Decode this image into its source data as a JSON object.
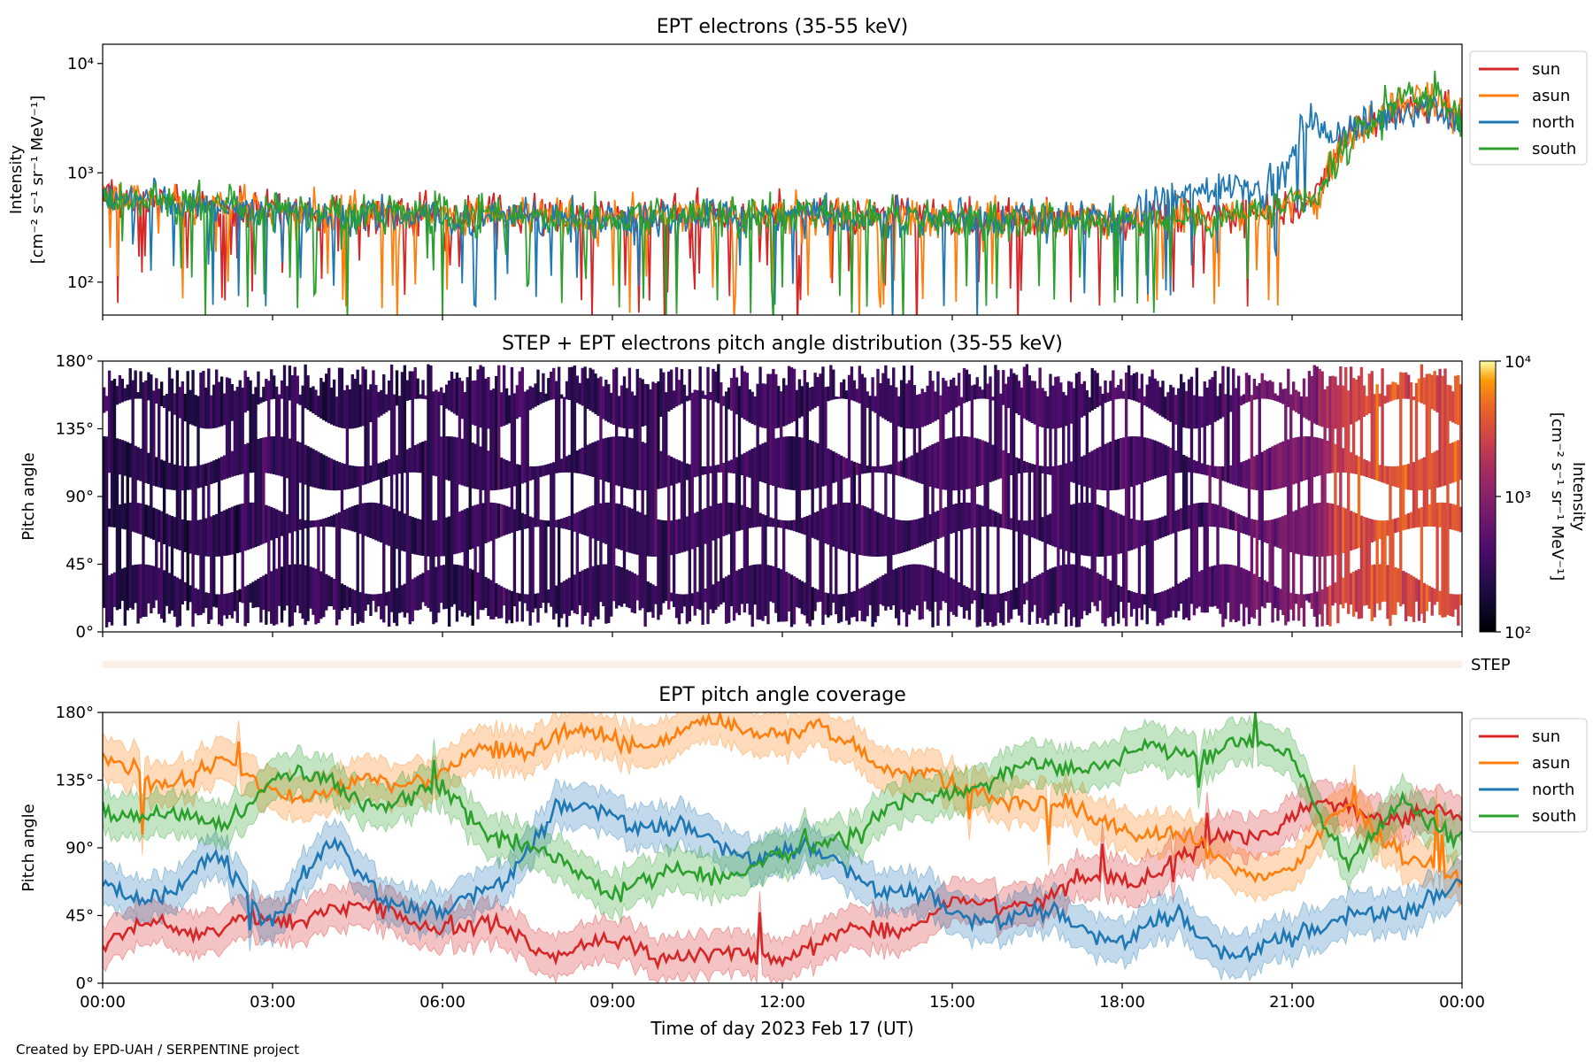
{
  "figure": {
    "footer": "Created by EPD-UAH / SERPENTINE project",
    "xlabel": "Time of day 2023 Feb 17 (UT)",
    "x_ticks": [
      "00:00",
      "03:00",
      "06:00",
      "09:00",
      "12:00",
      "15:00",
      "18:00",
      "21:00",
      "00:00"
    ],
    "step_label": "STEP"
  },
  "chart_data": [
    {
      "type": "line",
      "title": "EPT electrons (35-55 keV)",
      "ylabel_line1": "Intensity",
      "ylabel_line2": "[cm⁻² s⁻¹ sr⁻¹ MeV⁻¹]",
      "yscale": "log",
      "ylim": [
        50,
        15000
      ],
      "y_ticks": [
        "10²",
        "10³",
        "10⁴"
      ],
      "y_tick_values": [
        100,
        1000,
        10000
      ],
      "xlim": [
        "00:00",
        "24:00"
      ],
      "legend_position": "outside-right",
      "series": [
        {
          "name": "sun",
          "color": "#d62728",
          "hours": [
            0,
            2,
            4,
            6,
            8,
            10,
            12,
            14,
            16,
            18,
            19.5,
            20.5,
            21.5,
            22,
            22.5,
            23,
            23.5,
            23.9
          ],
          "values": [
            600,
            480,
            430,
            420,
            400,
            420,
            420,
            400,
            380,
            380,
            400,
            450,
            600,
            2300,
            3200,
            4000,
            4300,
            3200
          ]
        },
        {
          "name": "asun",
          "color": "#ff7f0e",
          "hours": [
            0,
            2,
            4,
            6,
            8,
            10,
            12,
            14,
            16,
            18,
            19.5,
            20.5,
            21.5,
            22,
            22.5,
            23,
            23.5,
            23.9
          ],
          "values": [
            620,
            500,
            440,
            420,
            400,
            410,
            410,
            400,
            380,
            370,
            400,
            450,
            600,
            2000,
            3000,
            4200,
            4600,
            3400
          ]
        },
        {
          "name": "north",
          "color": "#1f77b4",
          "hours": [
            0,
            2,
            4,
            6,
            8,
            10,
            12,
            14,
            16,
            18,
            19.5,
            20,
            20.5,
            21,
            21.3,
            21.5,
            22,
            22.5,
            23,
            23.5,
            23.9
          ],
          "values": [
            600,
            460,
            410,
            400,
            390,
            400,
            400,
            390,
            380,
            380,
            700,
            850,
            650,
            1200,
            3500,
            2200,
            2500,
            3000,
            3800,
            4200,
            3000
          ]
        },
        {
          "name": "south",
          "color": "#2ca02c",
          "hours": [
            0,
            2,
            4,
            6,
            8,
            10,
            12,
            14,
            16,
            18,
            19.5,
            20.5,
            21.5,
            22,
            22.5,
            23,
            23.5,
            23.9
          ],
          "values": [
            650,
            500,
            450,
            420,
            390,
            400,
            400,
            390,
            380,
            370,
            390,
            440,
            580,
            1800,
            3100,
            5500,
            4800,
            3300
          ]
        }
      ]
    },
    {
      "type": "heatmap",
      "title": "STEP + EPT electrons pitch angle distribution (35-55 keV)",
      "ylabel": "Pitch angle",
      "y_ticks": [
        "0°",
        "45°",
        "90°",
        "135°",
        "180°"
      ],
      "y_tick_values": [
        0,
        45,
        90,
        135,
        180
      ],
      "colormap": "inferno",
      "colorbar": {
        "label_line1": "Intensity",
        "label_line2": "[cm⁻² s⁻¹ sr⁻¹ MeV⁻¹]",
        "scale": "log",
        "range": [
          100,
          10000
        ],
        "ticks": [
          "10²",
          "10³",
          "10⁴"
        ],
        "tick_values": [
          100,
          1000,
          10000
        ]
      },
      "intensity_profile": {
        "hours": [
          0,
          19.5,
          21.4,
          21.8,
          22.5,
          23.9
        ],
        "values": [
          250,
          350,
          900,
          2800,
          3500,
          3000
        ]
      }
    },
    {
      "type": "line",
      "title": "EPT pitch angle coverage",
      "ylabel": "Pitch angle",
      "y_ticks": [
        "0°",
        "45°",
        "90°",
        "135°",
        "180°"
      ],
      "y_tick_values": [
        0,
        45,
        90,
        135,
        180
      ],
      "ylim": [
        0,
        180
      ],
      "legend_position": "outside-right",
      "series": [
        {
          "name": "sun",
          "color": "#d62728",
          "hours": [
            0,
            1,
            2,
            3,
            4,
            5,
            6,
            7,
            8,
            9,
            10,
            11,
            12,
            13,
            14,
            15,
            16,
            17,
            18,
            19,
            20,
            21,
            22,
            23,
            23.9
          ],
          "values": [
            25,
            40,
            35,
            40,
            50,
            45,
            40,
            35,
            20,
            25,
            20,
            15,
            20,
            30,
            40,
            50,
            55,
            60,
            70,
            80,
            100,
            110,
            120,
            110,
            110
          ]
        },
        {
          "name": "asun",
          "color": "#ff7f0e",
          "hours": [
            0,
            1,
            2,
            3,
            4,
            5,
            6,
            7,
            8,
            9,
            10,
            11,
            12,
            13,
            14,
            15,
            16,
            17,
            18,
            19,
            20,
            21,
            22,
            23,
            23.9
          ],
          "values": [
            145,
            135,
            145,
            130,
            125,
            135,
            140,
            155,
            165,
            160,
            165,
            170,
            170,
            160,
            145,
            130,
            125,
            115,
            105,
            95,
            80,
            70,
            125,
            80,
            70
          ]
        },
        {
          "name": "north",
          "color": "#1f77b4",
          "hours": [
            0,
            1,
            2,
            3,
            4,
            5,
            6,
            7,
            8,
            9,
            10,
            11,
            12,
            13,
            14,
            15,
            16,
            17,
            18,
            19,
            20,
            21,
            22,
            23,
            23.9
          ],
          "values": [
            60,
            60,
            80,
            45,
            90,
            60,
            40,
            70,
            110,
            115,
            100,
            90,
            85,
            80,
            60,
            45,
            45,
            40,
            30,
            40,
            20,
            25,
            50,
            40,
            70
          ]
        },
        {
          "name": "south",
          "color": "#2ca02c",
          "hours": [
            0,
            1,
            2,
            3,
            4,
            5,
            6,
            7,
            8,
            9,
            10,
            11,
            12,
            13,
            14,
            15,
            16,
            17,
            18,
            19,
            20,
            21,
            22,
            23,
            23.9
          ],
          "values": [
            115,
            115,
            100,
            140,
            130,
            120,
            125,
            100,
            80,
            65,
            70,
            75,
            80,
            100,
            115,
            130,
            140,
            145,
            150,
            155,
            160,
            150,
            80,
            120,
            100
          ]
        }
      ]
    }
  ]
}
